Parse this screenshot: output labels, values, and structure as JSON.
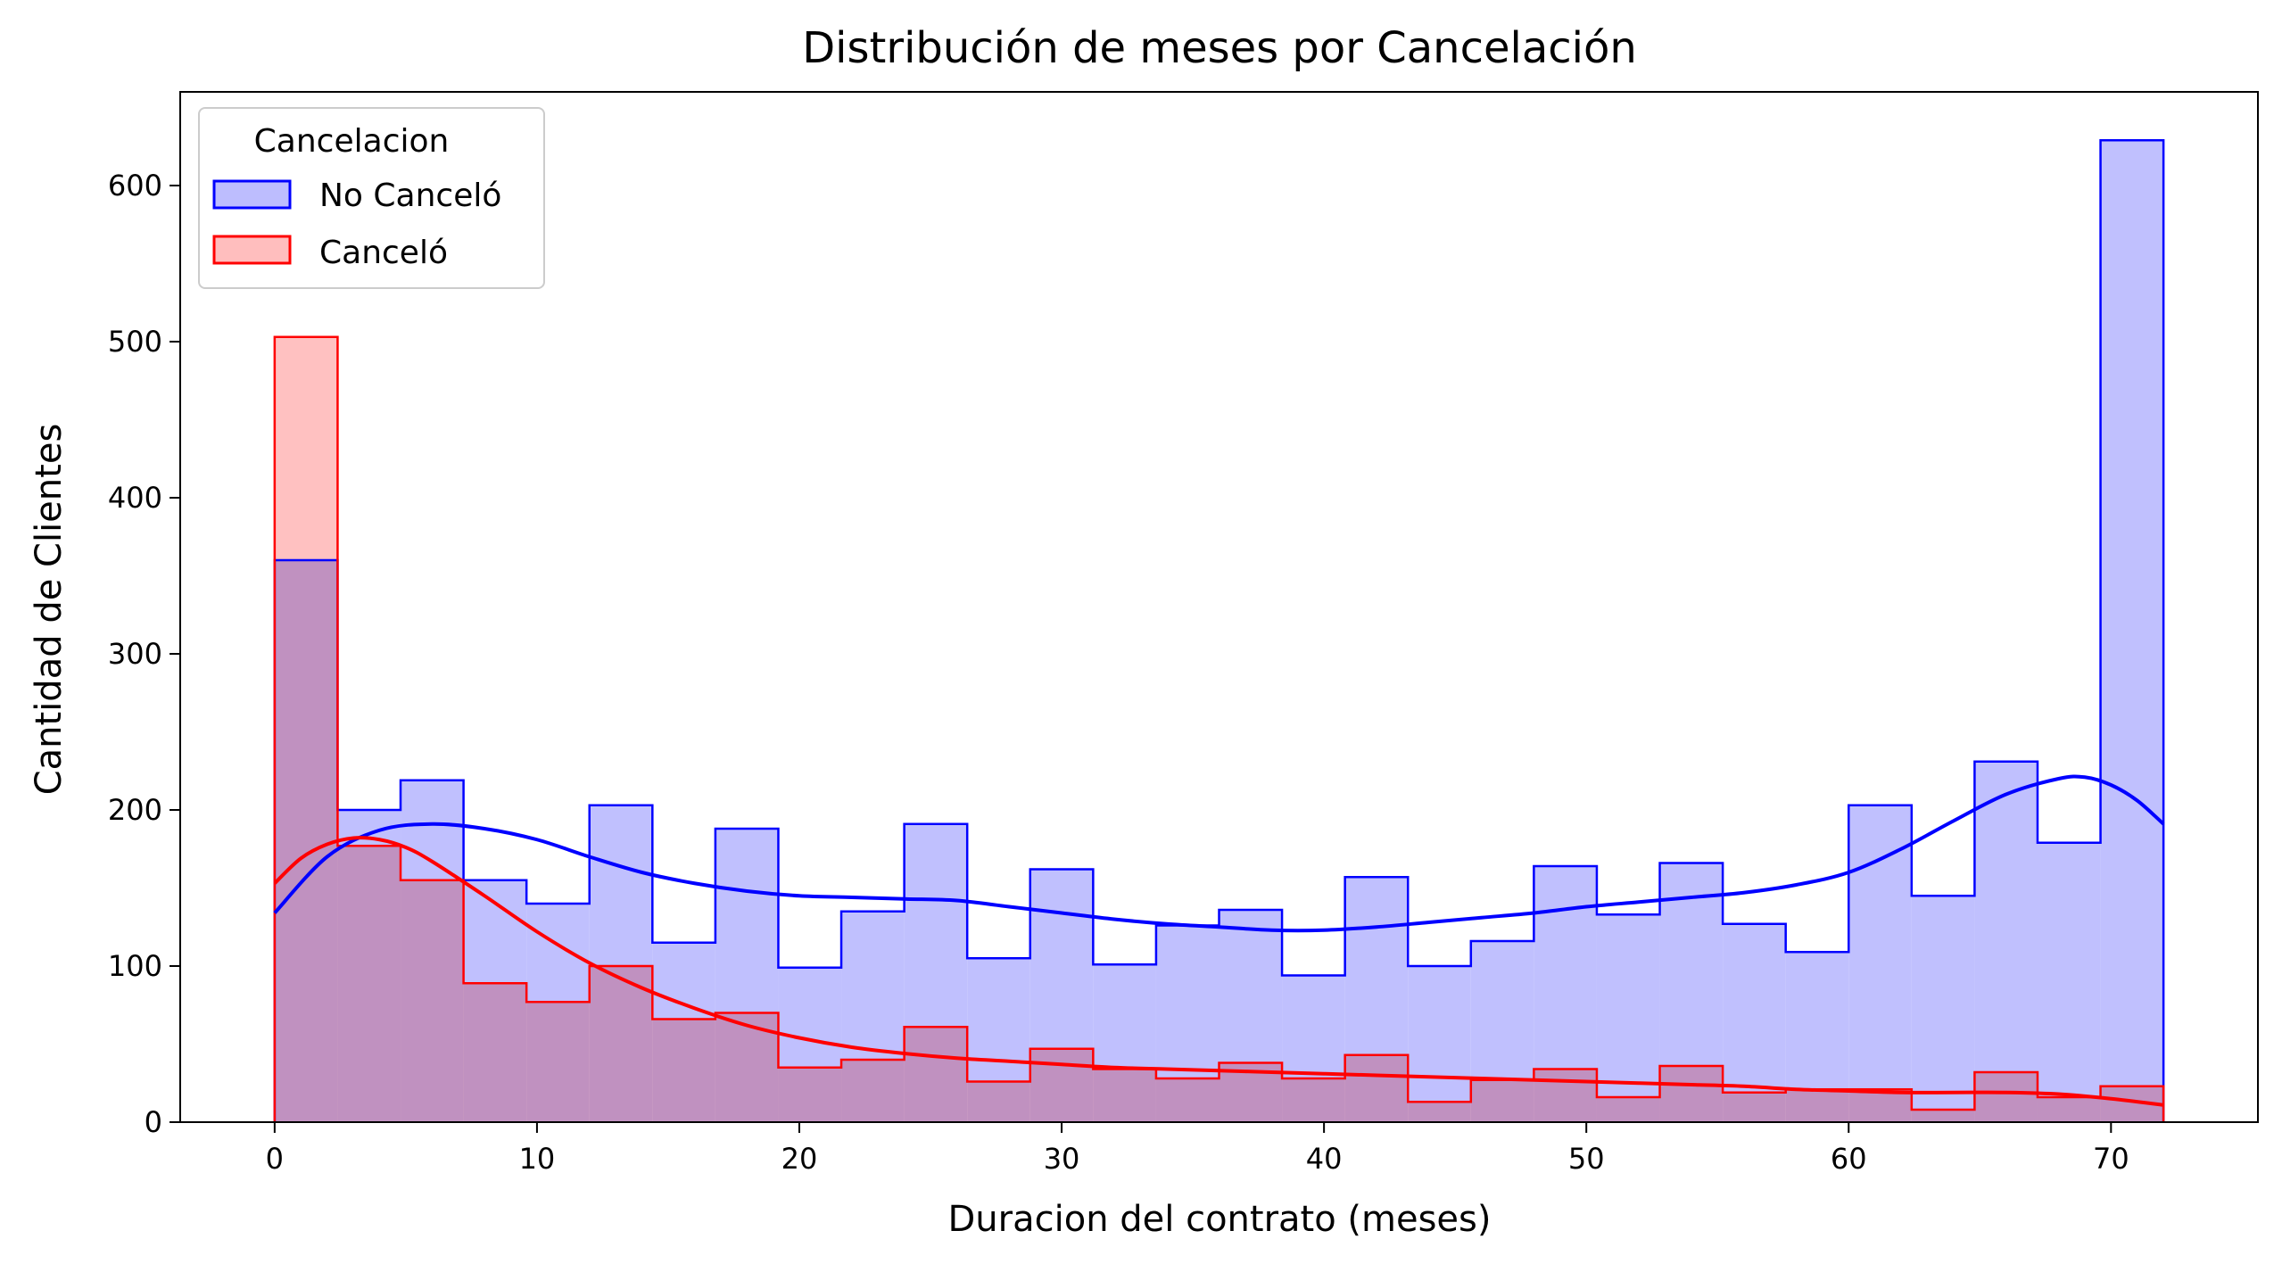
{
  "chart_data": {
    "type": "histogram",
    "title": "Distribución de meses por Cancelación",
    "xlabel": "Duracion del contrato (meses)",
    "ylabel": "Cantidad de Clientes",
    "xlim": [
      -3.6,
      75.6
    ],
    "ylim": [
      0,
      660
    ],
    "xticks": [
      0,
      10,
      20,
      30,
      40,
      50,
      60,
      70
    ],
    "yticks": [
      0,
      100,
      200,
      300,
      400,
      500,
      600
    ],
    "bin_width": 2.4,
    "bin_edges": [
      0,
      2.4,
      4.8,
      7.2,
      9.6,
      12.0,
      14.4,
      16.8,
      19.2,
      21.6,
      24.0,
      26.4,
      28.8,
      31.2,
      33.6,
      36.0,
      38.4,
      40.8,
      43.2,
      45.6,
      48.0,
      50.4,
      52.8,
      55.2,
      57.6,
      60.0,
      62.4,
      64.8,
      67.2,
      69.6,
      72.0
    ],
    "grid": false,
    "legend": {
      "title": "Cancelacion",
      "position": "top-left"
    },
    "series": [
      {
        "name": "No Canceló",
        "color": "#0000ff",
        "fill": "#bdbdfe",
        "counts": [
          360,
          200,
          219,
          155,
          140,
          203,
          115,
          188,
          99,
          135,
          191,
          105,
          162,
          101,
          126,
          136,
          94,
          157,
          100,
          116,
          164,
          133,
          166,
          127,
          109,
          203,
          145,
          231,
          179,
          629
        ],
        "kde": [
          [
            0,
            134
          ],
          [
            2,
            170
          ],
          [
            4,
            187
          ],
          [
            6,
            191
          ],
          [
            8,
            188
          ],
          [
            10,
            181
          ],
          [
            12,
            170
          ],
          [
            14,
            160
          ],
          [
            16,
            153
          ],
          [
            18,
            148
          ],
          [
            20,
            145
          ],
          [
            22,
            144
          ],
          [
            24,
            143
          ],
          [
            26,
            142
          ],
          [
            28,
            138
          ],
          [
            30,
            134
          ],
          [
            32,
            130
          ],
          [
            34,
            127
          ],
          [
            36,
            125
          ],
          [
            38,
            123
          ],
          [
            40,
            123
          ],
          [
            42,
            125
          ],
          [
            44,
            128
          ],
          [
            46,
            131
          ],
          [
            48,
            134
          ],
          [
            50,
            138
          ],
          [
            52,
            141
          ],
          [
            54,
            144
          ],
          [
            56,
            147
          ],
          [
            58,
            152
          ],
          [
            60,
            160
          ],
          [
            62,
            175
          ],
          [
            64,
            193
          ],
          [
            66,
            210
          ],
          [
            68,
            220
          ],
          [
            69,
            221
          ],
          [
            70,
            216
          ],
          [
            71,
            206
          ],
          [
            72,
            191
          ]
        ]
      },
      {
        "name": "Canceló",
        "color": "#ff0000",
        "fill": "#ffbebe",
        "counts": [
          503,
          177,
          155,
          89,
          77,
          100,
          66,
          70,
          35,
          40,
          61,
          26,
          47,
          34,
          28,
          38,
          28,
          43,
          13,
          27,
          34,
          16,
          36,
          19,
          21,
          21,
          8,
          32,
          16,
          23
        ],
        "kde": [
          [
            0,
            153
          ],
          [
            1,
            169
          ],
          [
            2,
            178
          ],
          [
            3,
            182
          ],
          [
            4,
            181
          ],
          [
            5,
            176
          ],
          [
            6,
            167
          ],
          [
            8,
            145
          ],
          [
            10,
            122
          ],
          [
            12,
            102
          ],
          [
            14,
            86
          ],
          [
            16,
            73
          ],
          [
            18,
            62
          ],
          [
            20,
            54
          ],
          [
            22,
            48
          ],
          [
            24,
            44
          ],
          [
            26,
            41
          ],
          [
            28,
            39
          ],
          [
            30,
            37
          ],
          [
            32,
            35
          ],
          [
            34,
            34
          ],
          [
            36,
            33
          ],
          [
            38,
            32
          ],
          [
            40,
            31
          ],
          [
            42,
            30
          ],
          [
            44,
            29
          ],
          [
            46,
            28
          ],
          [
            48,
            27
          ],
          [
            50,
            26
          ],
          [
            52,
            25
          ],
          [
            54,
            24
          ],
          [
            56,
            23
          ],
          [
            58,
            21
          ],
          [
            60,
            20
          ],
          [
            62,
            19
          ],
          [
            64,
            19
          ],
          [
            66,
            19
          ],
          [
            68,
            18
          ],
          [
            70,
            15
          ],
          [
            72,
            11
          ]
        ]
      }
    ]
  }
}
